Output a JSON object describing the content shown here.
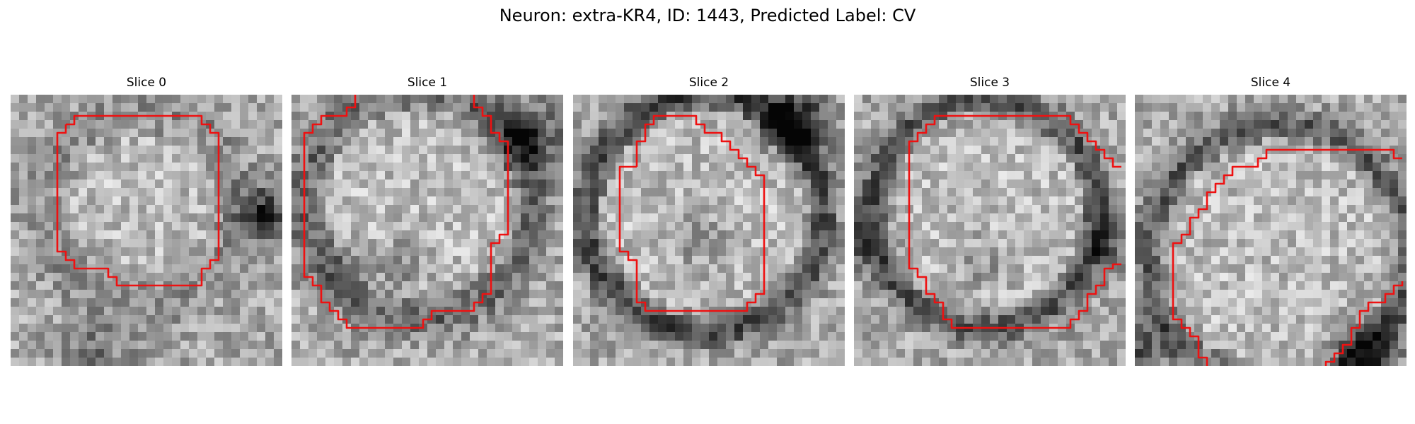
{
  "figure": {
    "title": "Neuron: extra-KR4, ID: 1443, Predicted Label: CV"
  },
  "panels": [
    {
      "title": "Slice 0"
    },
    {
      "title": "Slice 1"
    },
    {
      "title": "Slice 2"
    },
    {
      "title": "Slice 3"
    },
    {
      "title": "Slice 4"
    }
  ],
  "style": {
    "contour_color": "#ee1111",
    "colormap": "gray"
  }
}
